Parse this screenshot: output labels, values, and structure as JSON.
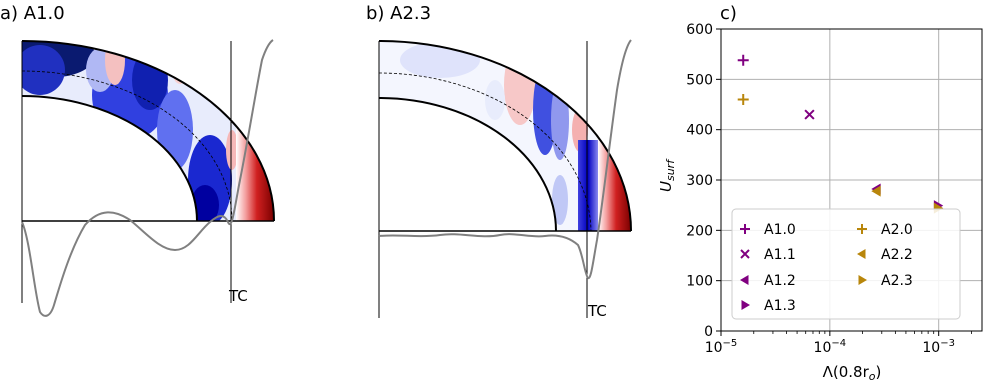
{
  "panels": {
    "a": {
      "title": "a) A1.0",
      "marker_label": "TC"
    },
    "b": {
      "title": "b) A2.3",
      "marker_label": "TC"
    }
  },
  "colors": {
    "purple": "#800080",
    "gold": "#b8860b",
    "profile": "#808080",
    "grid": "#b0b0b0"
  },
  "chart_data": {
    "type": "scatter",
    "title": "c)",
    "xlabel": "Λ(0.8r",
    "xlabel_sub": "o",
    "xlabel_close": ")",
    "ylabel": "U",
    "ylabel_sub": "surf",
    "xscale": "log",
    "xlim": [
      1e-05,
      0.0025
    ],
    "ylim": [
      0,
      600
    ],
    "grid": true,
    "legend_position": "lower-left",
    "y_ticks": [
      "0",
      "100",
      "200",
      "300",
      "400",
      "500",
      "600"
    ],
    "x_ticks": [
      {
        "base": "10",
        "exp": "−5",
        "value": 1e-05
      },
      {
        "base": "10",
        "exp": "−4",
        "value": 0.0001
      },
      {
        "base": "10",
        "exp": "−3",
        "value": 0.001
      }
    ],
    "series": [
      {
        "name": "A1.0",
        "marker": "plus",
        "color": "#800080",
        "x": 1.6e-05,
        "y": 538
      },
      {
        "name": "A1.1",
        "marker": "x",
        "color": "#800080",
        "x": 6.5e-05,
        "y": 430
      },
      {
        "name": "A1.2",
        "marker": "tri-left",
        "color": "#800080",
        "x": 0.00027,
        "y": 282
      },
      {
        "name": "A1.3",
        "marker": "tri-right",
        "color": "#800080",
        "x": 0.00098,
        "y": 249
      },
      {
        "name": "A2.0",
        "marker": "plus",
        "color": "#b8860b",
        "x": 1.6e-05,
        "y": 460
      },
      {
        "name": "A2.2",
        "marker": "tri-left",
        "color": "#b8860b",
        "x": 0.00027,
        "y": 278
      },
      {
        "name": "A2.3",
        "marker": "tri-right",
        "color": "#b8860b",
        "x": 0.00098,
        "y": 244
      }
    ]
  }
}
